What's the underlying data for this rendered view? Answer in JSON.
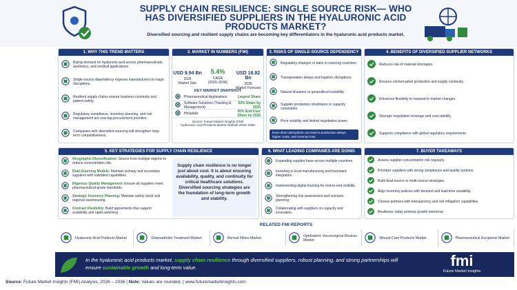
{
  "header": {
    "title": "SUPPLY CHAIN RESILIENCE: SINGLE SOURCE RISK— WHO HAS DIVERSIFIED SUPPLIERS IN THE HYALURONIC ACID PRODUCTS MARKET?",
    "subtitle": "Diversified sourcing and resilient supply chains are becoming key differentiators in the hyaluronic acid products market."
  },
  "why": {
    "title": "1. WHY THIS TREND MATTERS",
    "items": [
      "Rising demand for hyaluronic acid across pharmaceuticals, aesthetics, and medical applications.",
      "Single-source dependency exposes manufacturers to major disruptions.",
      "Resilient supply chains ensure business continuity and patient safety.",
      "Regulatory compliance, inventory planning, and risk management are now top procurement priorities.",
      "Companies with diversified sourcing will strengthen long-term competitiveness."
    ]
  },
  "market": {
    "title": "2. MARKET IN NUMBERS (FMI)",
    "stats": [
      {
        "value": "USD 9.94 Bn",
        "year": "2026",
        "label": "Market Size"
      },
      {
        "value": "5.4%",
        "year": "CAGR",
        "label": "(2026–2036)"
      },
      {
        "value": "USD 16.82 Bn",
        "year": "2036",
        "label": "Market Forecast"
      }
    ],
    "snapshot_title": "KEY MARKET SNAPSHOT",
    "snapshot": [
      {
        "label": "Pharmaceutical Applications",
        "share": "Largest Share"
      },
      {
        "label": "Software Solutions (Tracking & Management)",
        "share": "50% Share by 2026"
      },
      {
        "label": "Hospitals",
        "share": "45% End-User Share by 2026"
      }
    ],
    "source": [
      "Source: Future Market Insights (FMI)",
      "Hyaluronic Acid Products Market Outlook 2026–2036"
    ]
  },
  "risks": {
    "title": "3. RISKS OF SINGLE-SOURCE DEPENDENCY",
    "items": [
      "Regulatory changes or bans in sourcing countries.",
      "Transportation delays and logistics disruptions.",
      "Natural disasters or geopolitical instability.",
      "Supplier production shutdowns or capacity constraints.",
      "Price volatility and limited negotiation power."
    ],
    "note": "Even short disruptions can lead to production delays, higher costs, and revenue loss."
  },
  "benefits": {
    "title": "4. BENEFITS OF DIVERSIFIED SUPPLIER NETWORKS",
    "items": [
      "Reduces risk of material shortages.",
      "Ensures uninterrupted production and supply continuity.",
      "Enhances flexibility to respond to market changes.",
      "Stronger negotiation leverage and cost stability.",
      "Supports compliance with global regulatory requirements."
    ]
  },
  "strategies": {
    "title": "5. KEY STRATEGIES FOR SUPPLY CHAIN RESILIENCE",
    "items": [
      {
        "term": "Geographic Diversification:",
        "text": "Source from multiple regions to reduce concentration risk."
      },
      {
        "term": "Dual-Sourcing Models:",
        "text": "Maintain primary and secondary suppliers with validated capabilities."
      },
      {
        "term": "Rigorous Quality Management:",
        "text": "Ensure all suppliers meet pharmaceutical-grade standards."
      },
      {
        "term": "Strategic Inventory Planning:",
        "text": "Maintain safety stock and regional warehousing."
      },
      {
        "term": "Contract Flexibility:",
        "text": "Build agreements that support scalability and rapid switching."
      }
    ],
    "quote": "Supply chain resilience is no longer just about cost. It is about ensuring availability, quality, and continuity for critical healthcare solutions. Diversified sourcing strategies are the foundation of long-term growth and stability."
  },
  "companies": {
    "title": "6. WHAT LEADING COMPANIES ARE DOING",
    "items": [
      "Expanding supplier base across multiple countries.",
      "Investing in local manufacturing and backward integration.",
      "Implementing digital tracking for end-to-end visibility.",
      "Strengthening risk assessment and scenario planning.",
      "Collaborating with suppliers on capacity and innovation."
    ]
  },
  "takeaways": {
    "title": "7. BUYER TAKEAWAYS",
    "items": [
      "Assess supplier concentration risk regularly.",
      "Prioritize suppliers with strong compliance and quality systems.",
      "Build dual-source or multi-source strategies.",
      "Align inventory policies with demand and lead-time variability.",
      "Choose partners with transparency and risk mitigation capabilities.",
      "Resilience today protects growth tomorrow."
    ]
  },
  "related": {
    "title": "RELATED FMI REPORTS",
    "reports": [
      "Hyaluronic Acid Products Market",
      "Osteoarthritis Treatment Market",
      "Dermal Fillers Market",
      "Ophthalmic Viscosurgical Devices Market",
      "Wound Care Products Market",
      "Pharmaceutical Excipients Market"
    ]
  },
  "banner": {
    "parts": [
      {
        "text": "In the hyaluronic acid products market,"
      },
      {
        "text": "supply chain resilience",
        "highlight": true
      },
      {
        "text": "through diversified suppliers, robust planning, and strong partnerships will ensure"
      },
      {
        "text": "sustainable growth",
        "highlight": true
      },
      {
        "text": "and long-term value."
      }
    ],
    "brand": "fmi",
    "brand_sub": "Future Market Insights"
  },
  "footer": {
    "parts": [
      {
        "label": "Source:",
        "text": "Future Market Insights (FMI) Analysis, 2026 – 2036"
      },
      {
        "label": "Note:",
        "text": "Values are rounded."
      },
      {
        "text": "www.futuremarketinsights.com"
      }
    ]
  }
}
